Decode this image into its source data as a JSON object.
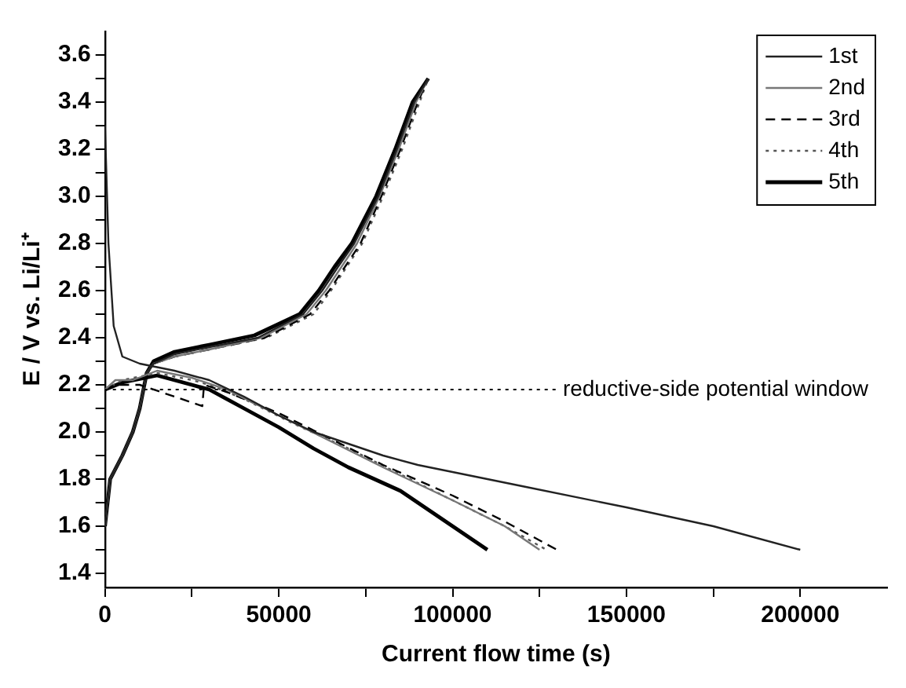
{
  "chart_data": {
    "type": "line",
    "xlabel": "Current flow time (s)",
    "ylabel": "E / V vs. Li/Li⁺",
    "xlim": [
      0,
      225000
    ],
    "ylim": [
      1.34,
      3.7
    ],
    "xticks": [
      0,
      {
        "value": 25000,
        "label": null
      },
      50000,
      {
        "value": 75000,
        "label": null
      },
      100000,
      {
        "value": 125000,
        "label": null
      },
      150000,
      {
        "value": 175000,
        "label": null
      },
      200000
    ],
    "yticks": [
      1.4,
      {
        "value": 1.5,
        "label": null
      },
      1.6,
      {
        "value": 1.7,
        "label": null
      },
      1.8,
      {
        "value": 1.9,
        "label": null
      },
      "2.0",
      {
        "value": 2.1,
        "label": null
      },
      2.2,
      {
        "value": 2.3,
        "label": null
      },
      2.4,
      {
        "value": 2.5,
        "label": null
      },
      2.6,
      {
        "value": 2.7,
        "label": null
      },
      2.8,
      {
        "value": 2.9,
        "label": null
      },
      "3.0",
      {
        "value": 3.1,
        "label": null
      },
      3.2,
      {
        "value": 3.3,
        "label": null
      },
      3.4,
      {
        "value": 3.5,
        "label": null
      },
      3.6
    ],
    "legend": "top right",
    "grid": false,
    "marker": "none",
    "ref_lines": [
      {
        "axis": "y",
        "value": 2.18,
        "label": "reductive-side potential window",
        "line_style": "dotted",
        "color": "#000000"
      }
    ],
    "series": [
      {
        "name": "1st",
        "color": "#222222",
        "line_style": "solid",
        "x": [
          0,
          1000,
          2500,
          5000,
          10000,
          20000,
          30000,
          40000,
          50000,
          60000,
          70000,
          80000,
          90000,
          100000,
          120000,
          150000,
          175000,
          200000
        ],
        "values": [
          3.3,
          2.8,
          2.45,
          2.32,
          2.29,
          2.26,
          2.22,
          2.15,
          2.07,
          2.0,
          1.95,
          1.9,
          1.86,
          1.83,
          1.77,
          1.68,
          1.6,
          1.5
        ]
      },
      {
        "name": "2nd",
        "color": "#777777",
        "line_style": "solid",
        "x": [
          0,
          3000,
          8000,
          15000,
          25000,
          35000,
          50000,
          65000,
          80000,
          100000,
          115000,
          125000
        ],
        "values": [
          2.18,
          2.22,
          2.22,
          2.26,
          2.23,
          2.18,
          2.07,
          1.96,
          1.85,
          1.71,
          1.6,
          1.5
        ]
      },
      {
        "name": "3rd",
        "color": "#000000",
        "line_style": "dashed",
        "x": [
          0,
          3000,
          10000,
          20000,
          28000,
          28500,
          35000,
          50000,
          65000,
          80000,
          100000,
          115000,
          130000
        ],
        "values": [
          2.18,
          2.2,
          2.2,
          2.15,
          2.11,
          2.2,
          2.17,
          2.08,
          1.97,
          1.86,
          1.73,
          1.62,
          1.5
        ]
      },
      {
        "name": "4th",
        "color": "#555555",
        "line_style": "dotted",
        "x": [
          0,
          5000,
          15000,
          25000,
          30000,
          40000,
          55000,
          70000,
          85000,
          100000,
          115000,
          127000
        ],
        "values": [
          2.18,
          2.22,
          2.25,
          2.22,
          2.2,
          2.14,
          2.03,
          1.93,
          1.82,
          1.71,
          1.6,
          1.5
        ]
      },
      {
        "name": "5th",
        "color": "#000000",
        "line_style": "solid",
        "x": [
          0,
          5000,
          15000,
          25000,
          30000,
          40000,
          50000,
          60000,
          70000,
          85000,
          100000,
          110000
        ],
        "values": [
          2.18,
          2.21,
          2.24,
          2.2,
          2.18,
          2.1,
          2.02,
          1.93,
          1.85,
          1.75,
          1.6,
          1.5
        ]
      },
      {
        "color": "#222222",
        "line_style": "solid",
        "x": [
          0,
          1500,
          5000,
          8000,
          10000,
          12000,
          14000,
          20000,
          30000,
          44000,
          57000,
          62500,
          67000,
          71700,
          78600,
          84000,
          89000,
          93000
        ],
        "values": [
          1.6,
          1.8,
          1.9,
          2.0,
          2.1,
          2.25,
          2.29,
          2.33,
          2.36,
          2.4,
          2.5,
          2.6,
          2.7,
          2.8,
          3.0,
          3.2,
          3.4,
          3.5
        ]
      },
      {
        "color": "#777777",
        "line_style": "solid",
        "x": [
          0,
          1500,
          5000,
          8000,
          10000,
          12000,
          14000,
          20000,
          30000,
          45000,
          58000,
          63500,
          68000,
          72500,
          79000,
          84500,
          89500,
          93000
        ],
        "values": [
          1.6,
          1.8,
          1.9,
          2.0,
          2.1,
          2.25,
          2.29,
          2.32,
          2.35,
          2.4,
          2.5,
          2.6,
          2.7,
          2.8,
          3.0,
          3.2,
          3.4,
          3.5
        ]
      },
      {
        "color": "#000000",
        "line_style": "dashed",
        "x": [
          0,
          1500,
          5000,
          8000,
          10000,
          12000,
          14000,
          20000,
          30000,
          46000,
          59000,
          64500,
          69000,
          73500,
          79500,
          85000,
          90000,
          93000
        ],
        "values": [
          1.6,
          1.8,
          1.9,
          2.0,
          2.1,
          2.25,
          2.29,
          2.32,
          2.35,
          2.4,
          2.5,
          2.6,
          2.7,
          2.8,
          3.0,
          3.2,
          3.4,
          3.5
        ]
      },
      {
        "color": "#555555",
        "line_style": "dotted",
        "x": [
          0,
          1500,
          5000,
          8000,
          10000,
          12000,
          14000,
          20000,
          30000,
          46500,
          60000,
          65000,
          69500,
          74000,
          80000,
          85500,
          90500,
          93000
        ],
        "values": [
          1.6,
          1.8,
          1.9,
          2.0,
          2.1,
          2.25,
          2.29,
          2.32,
          2.35,
          2.4,
          2.5,
          2.6,
          2.7,
          2.8,
          3.0,
          3.2,
          3.4,
          3.5
        ]
      },
      {
        "color": "#000000",
        "line_style": "solid",
        "x": [
          0,
          1500,
          5000,
          8000,
          10000,
          12000,
          14000,
          20000,
          30000,
          43000,
          56000,
          61500,
          66000,
          71000,
          78000,
          83500,
          88500,
          93000
        ],
        "values": [
          1.6,
          1.8,
          1.9,
          2.0,
          2.1,
          2.25,
          2.3,
          2.34,
          2.37,
          2.41,
          2.5,
          2.6,
          2.7,
          2.8,
          3.0,
          3.2,
          3.4,
          3.5
        ]
      }
    ]
  }
}
